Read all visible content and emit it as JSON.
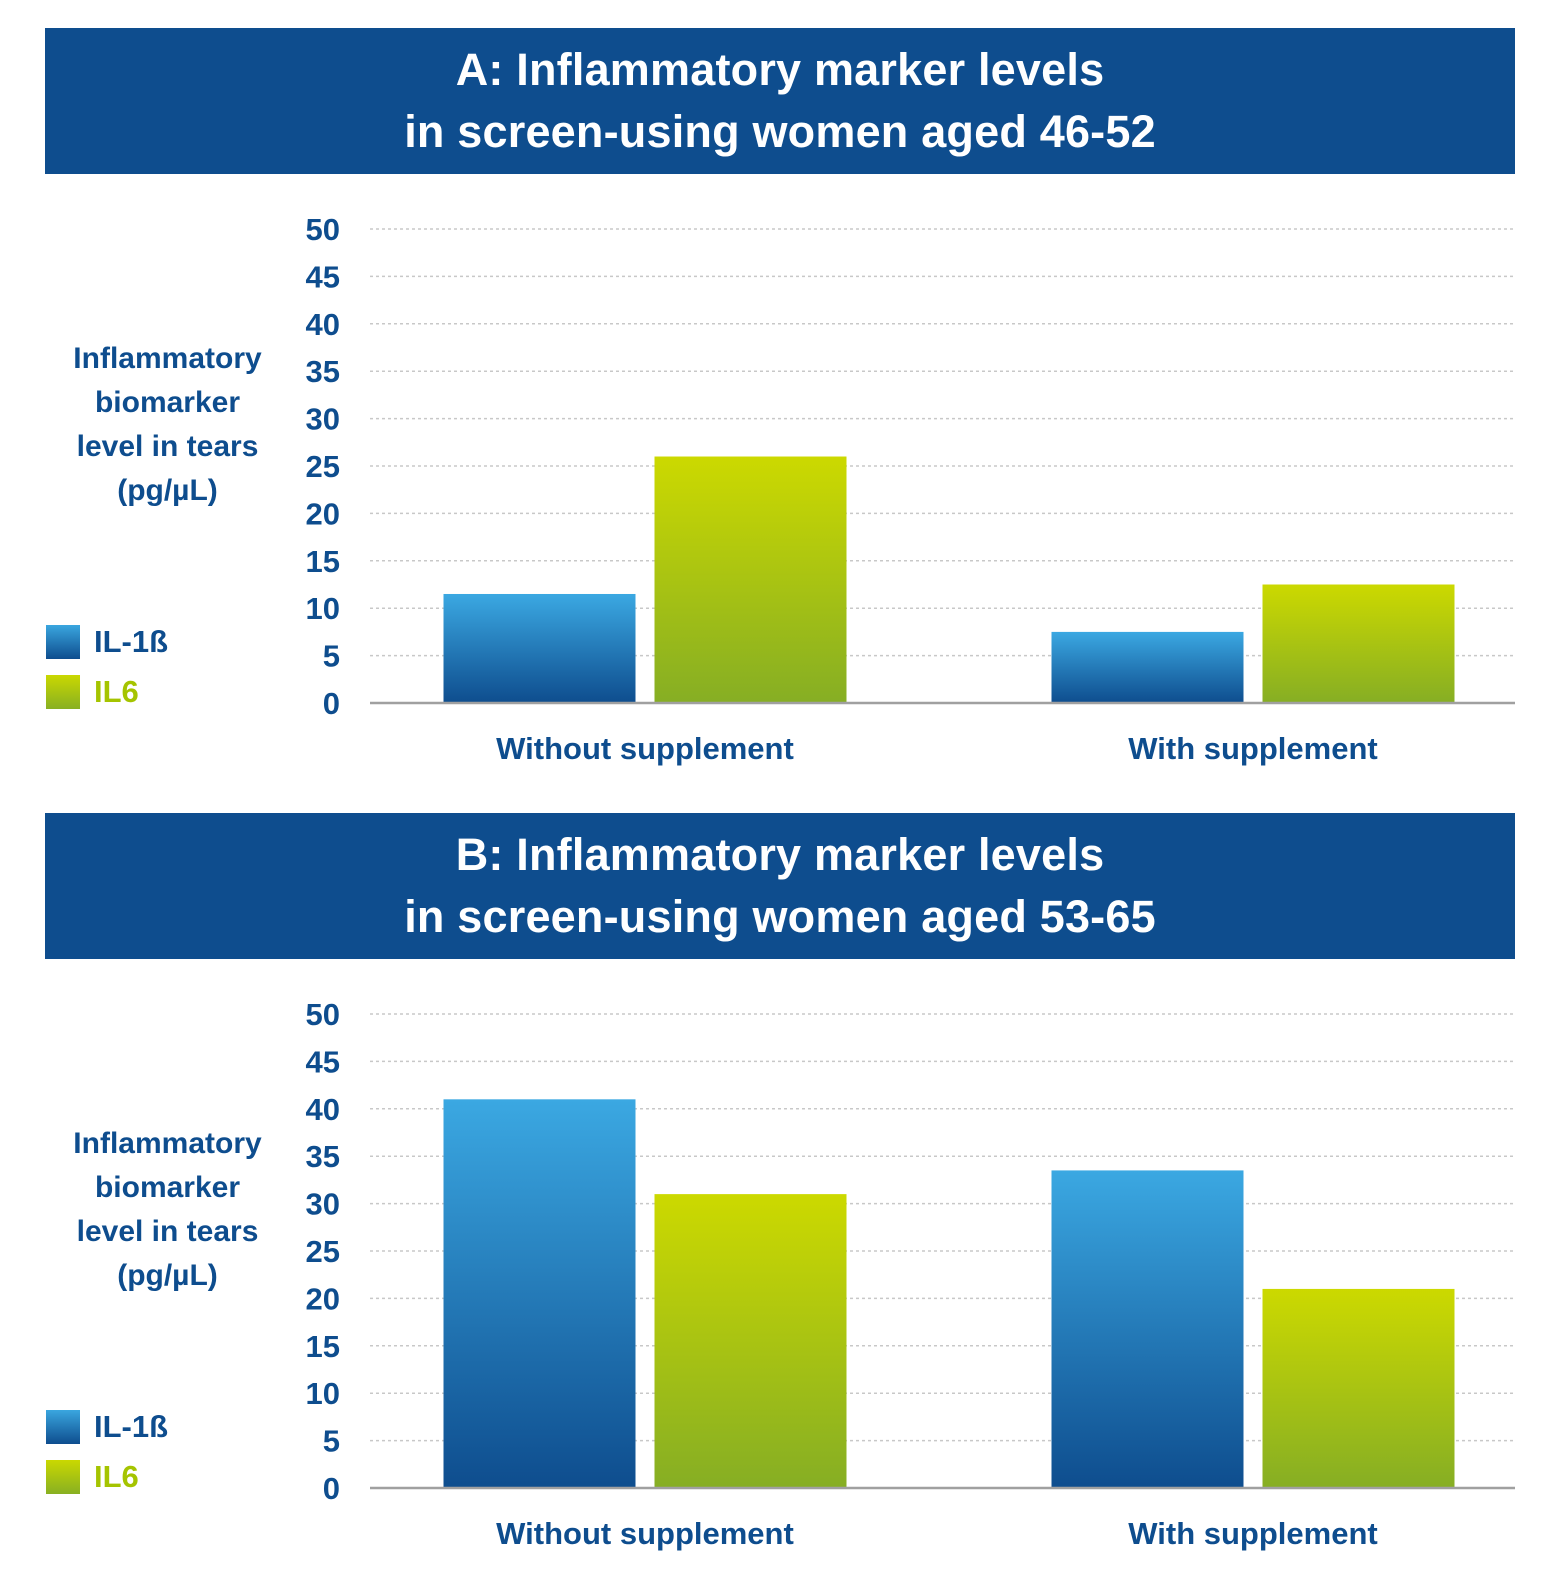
{
  "colors": {
    "banner": "#0e4d8e",
    "text": "#0e4d8e",
    "il1b": "#2a86c8",
    "il6": "#b8cc08",
    "grid": "#c8c8c8"
  },
  "panels": [
    {
      "title_line1": "A: Inflammatory marker levels",
      "title_line2": "in screen-using women aged 46-52",
      "ylabel_lines": [
        "Inflammatory",
        "biomarker",
        "level in tears",
        "(pg/µL)"
      ],
      "legend": [
        {
          "label": "IL-1ß"
        },
        {
          "label": "IL6"
        }
      ]
    },
    {
      "title_line1": "B: Inflammatory marker levels",
      "title_line2": "in screen-using women aged 53-65",
      "ylabel_lines": [
        "Inflammatory",
        "biomarker",
        "level in tears",
        "(pg/µL)"
      ],
      "legend": [
        {
          "label": "IL-1ß"
        },
        {
          "label": "IL6"
        }
      ]
    }
  ],
  "chart_data": [
    {
      "type": "bar",
      "title": "A: Inflammatory marker levels in screen-using women aged 46-52",
      "ylabel": "Inflammatory biomarker level in tears (pg/µL)",
      "xlabel": "",
      "categories": [
        "Without supplement",
        "With supplement"
      ],
      "series": [
        {
          "name": "IL-1ß",
          "values": [
            11.5,
            7.5
          ]
        },
        {
          "name": "IL6",
          "values": [
            26,
            12.5
          ]
        }
      ],
      "ylim": [
        0,
        50
      ],
      "yticks": [
        0,
        5,
        10,
        15,
        20,
        25,
        30,
        35,
        40,
        45,
        50
      ],
      "grid": true,
      "legend": "left"
    },
    {
      "type": "bar",
      "title": "B: Inflammatory marker levels in screen-using women aged 53-65",
      "ylabel": "Inflammatory biomarker level in tears (pg/µL)",
      "xlabel": "",
      "categories": [
        "Without supplement",
        "With supplement"
      ],
      "series": [
        {
          "name": "IL-1ß",
          "values": [
            41,
            33.5
          ]
        },
        {
          "name": "IL6",
          "values": [
            31,
            21
          ]
        }
      ],
      "ylim": [
        0,
        50
      ],
      "yticks": [
        0,
        5,
        10,
        15,
        20,
        25,
        30,
        35,
        40,
        45,
        50
      ],
      "grid": true,
      "legend": "left"
    }
  ]
}
